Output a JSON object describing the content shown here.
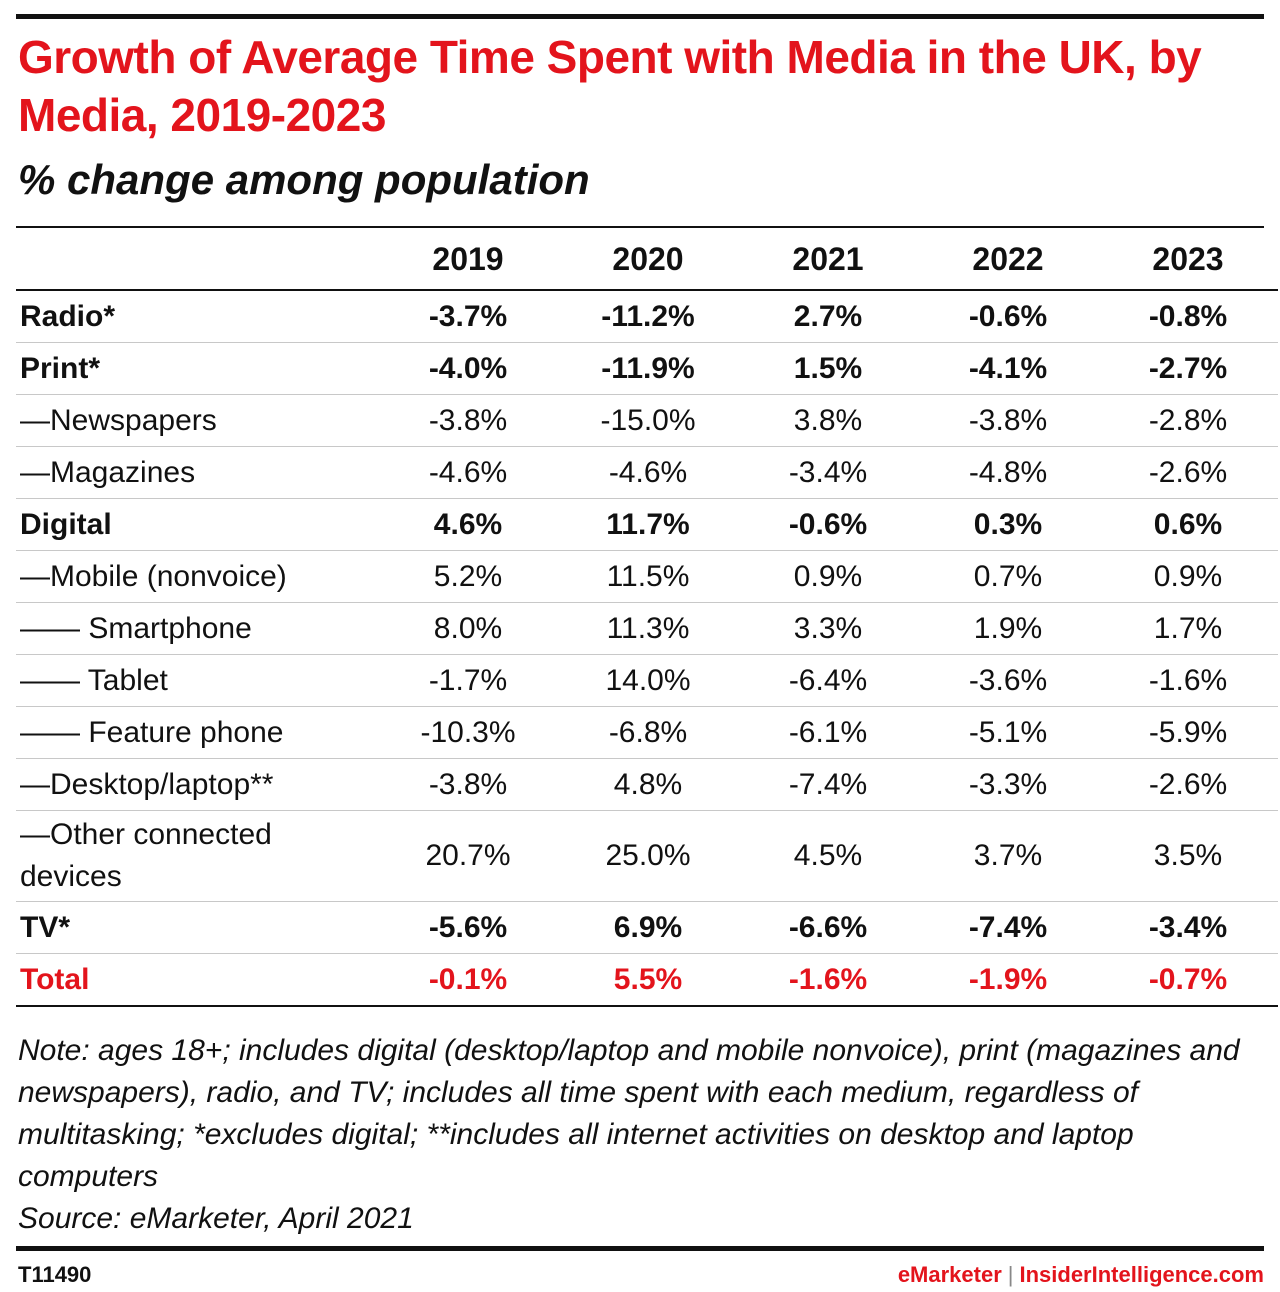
{
  "header": {
    "title": "Growth of Average Time Spent with Media in the UK, by Media, 2019-2023",
    "subtitle": "% change among population"
  },
  "chart_data": {
    "type": "table",
    "title": "Growth of Average Time Spent with Media in the UK, by Media, 2019-2023",
    "subtitle": "% change among population",
    "columns": [
      "2019",
      "2020",
      "2021",
      "2022",
      "2023"
    ],
    "rows": [
      {
        "label": "Radio*",
        "values": [
          "-3.7%",
          "-11.2%",
          "2.7%",
          "-0.6%",
          "-0.8%"
        ],
        "style": "bold"
      },
      {
        "label": "Print*",
        "values": [
          "-4.0%",
          "-11.9%",
          "1.5%",
          "-4.1%",
          "-2.7%"
        ],
        "style": "bold"
      },
      {
        "label": "—Newspapers",
        "values": [
          "-3.8%",
          "-15.0%",
          "3.8%",
          "-3.8%",
          "-2.8%"
        ],
        "style": "normal"
      },
      {
        "label": "—Magazines",
        "values": [
          "-4.6%",
          "-4.6%",
          "-3.4%",
          "-4.8%",
          "-2.6%"
        ],
        "style": "normal"
      },
      {
        "label": "Digital",
        "values": [
          "4.6%",
          "11.7%",
          "-0.6%",
          "0.3%",
          "0.6%"
        ],
        "style": "bold"
      },
      {
        "label": "—Mobile (nonvoice)",
        "values": [
          "5.2%",
          "11.5%",
          "0.9%",
          "0.7%",
          "0.9%"
        ],
        "style": "normal"
      },
      {
        "label": "—— Smartphone",
        "values": [
          "8.0%",
          "11.3%",
          "3.3%",
          "1.9%",
          "1.7%"
        ],
        "style": "normal"
      },
      {
        "label": "—— Tablet",
        "values": [
          "-1.7%",
          "14.0%",
          "-6.4%",
          "-3.6%",
          "-1.6%"
        ],
        "style": "normal"
      },
      {
        "label": "—— Feature phone",
        "values": [
          "-10.3%",
          "-6.8%",
          "-6.1%",
          "-5.1%",
          "-5.9%"
        ],
        "style": "normal"
      },
      {
        "label": "—Desktop/laptop**",
        "values": [
          "-3.8%",
          "4.8%",
          "-7.4%",
          "-3.3%",
          "-2.6%"
        ],
        "style": "normal"
      },
      {
        "label": "—Other connected devices",
        "values": [
          "20.7%",
          "25.0%",
          "4.5%",
          "3.7%",
          "3.5%"
        ],
        "style": "tall"
      },
      {
        "label": "TV*",
        "values": [
          "-5.6%",
          "6.9%",
          "-6.6%",
          "-7.4%",
          "-3.4%"
        ],
        "style": "bold"
      },
      {
        "label": "Total",
        "values": [
          "-0.1%",
          "5.5%",
          "-1.6%",
          "-1.9%",
          "-0.7%"
        ],
        "style": "total"
      }
    ]
  },
  "footer": {
    "note": "Note: ages 18+; includes digital (desktop/laptop and mobile nonvoice), print (magazines and newspapers), radio, and TV; includes all time spent with each medium, regardless of multitasking; *excludes digital; **includes all internet activities on desktop and laptop computers",
    "source": "Source: eMarketer, April 2021",
    "chart_id": "T11490",
    "brand_left": "eMarketer",
    "brand_sep": "|",
    "brand_right": "InsiderIntelligence.com"
  },
  "colors": {
    "accent": "#e3141c",
    "text": "#111111",
    "rule": "#111111"
  }
}
